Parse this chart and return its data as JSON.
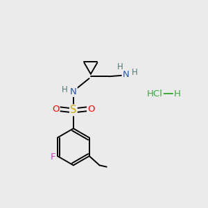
{
  "background_color": "#ebebeb",
  "figsize": [
    3.0,
    3.0
  ],
  "dpi": 100,
  "atom_colors": {
    "C": "#000000",
    "N": "#2255bb",
    "O": "#ff0000",
    "S": "#ccaa00",
    "F": "#cc44cc",
    "H": "#507878",
    "Cl": "#3aaa3a",
    "default": "#000000"
  },
  "bond_color": "#000000",
  "bond_width": 1.4,
  "font_size": 9.5
}
